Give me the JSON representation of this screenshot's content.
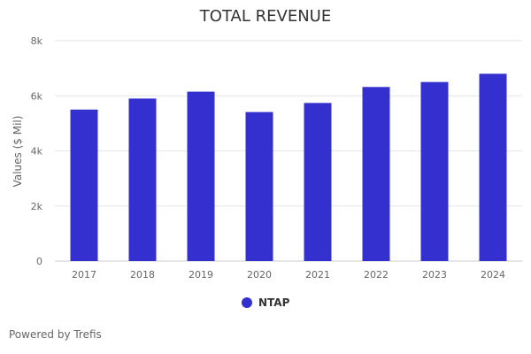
{
  "chart_data": {
    "type": "bar",
    "title": "TOTAL REVENUE",
    "xlabel": "",
    "ylabel": "Values ($ Mil)",
    "categories": [
      "2017",
      "2018",
      "2019",
      "2020",
      "2021",
      "2022",
      "2023",
      "2024"
    ],
    "series": [
      {
        "name": "NTAP",
        "values": [
          5500,
          5900,
          6150,
          5410,
          5740,
          6320,
          6500,
          6800
        ],
        "color": "#3330cf"
      }
    ],
    "ylim": [
      0,
      8000
    ],
    "yticks": [
      0,
      2000,
      4000,
      6000,
      8000
    ],
    "ytick_labels": [
      "0",
      "2k",
      "4k",
      "6k",
      "8k"
    ],
    "grid": true,
    "legend_position": "bottom-center"
  },
  "footer": {
    "text": "Powered by Trefis"
  }
}
